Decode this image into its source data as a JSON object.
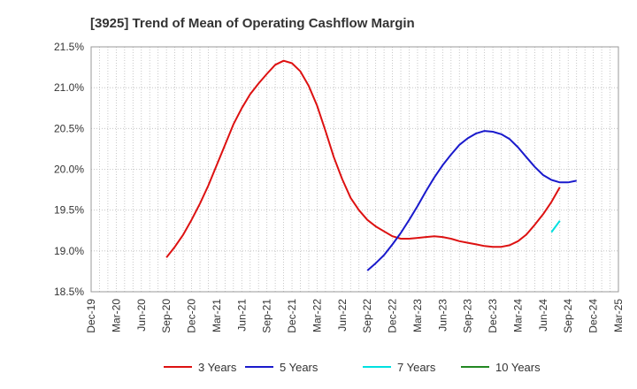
{
  "chart_data": {
    "type": "line",
    "title": "[3925]  Trend of Mean of Operating Cashflow Margin",
    "xlabel": "",
    "ylabel": "",
    "ylim": [
      18.5,
      21.5
    ],
    "y_ticks": [
      "18.5%",
      "19.0%",
      "19.5%",
      "20.0%",
      "20.5%",
      "21.0%",
      "21.5%"
    ],
    "y_tick_values": [
      18.5,
      19.0,
      19.5,
      20.0,
      20.5,
      21.0,
      21.5
    ],
    "x_ticks": [
      "Dec-19",
      "Mar-20",
      "Jun-20",
      "Sep-20",
      "Dec-20",
      "Mar-21",
      "Jun-21",
      "Sep-21",
      "Dec-21",
      "Mar-22",
      "Jun-22",
      "Sep-22",
      "Dec-22",
      "Mar-23",
      "Jun-23",
      "Sep-23",
      "Dec-23",
      "Mar-24",
      "Jun-24",
      "Sep-24",
      "Dec-24",
      "Mar-25"
    ],
    "x_range": [
      "Dec-19",
      "Mar-25"
    ],
    "grid": true,
    "legend_position": "bottom",
    "series": [
      {
        "name": "3 Years",
        "color": "#dd1111",
        "points": [
          [
            "Sep-20",
            18.92
          ],
          [
            "Oct-20",
            19.05
          ],
          [
            "Nov-20",
            19.2
          ],
          [
            "Dec-20",
            19.38
          ],
          [
            "Jan-21",
            19.58
          ],
          [
            "Feb-21",
            19.8
          ],
          [
            "Mar-21",
            20.05
          ],
          [
            "Apr-21",
            20.3
          ],
          [
            "May-21",
            20.55
          ],
          [
            "Jun-21",
            20.75
          ],
          [
            "Jul-21",
            20.92
          ],
          [
            "Aug-21",
            21.05
          ],
          [
            "Sep-21",
            21.17
          ],
          [
            "Oct-21",
            21.28
          ],
          [
            "Nov-21",
            21.33
          ],
          [
            "Dec-21",
            21.3
          ],
          [
            "Jan-22",
            21.2
          ],
          [
            "Feb-22",
            21.02
          ],
          [
            "Mar-22",
            20.78
          ],
          [
            "Apr-22",
            20.47
          ],
          [
            "May-22",
            20.15
          ],
          [
            "Jun-22",
            19.88
          ],
          [
            "Jul-22",
            19.65
          ],
          [
            "Aug-22",
            19.5
          ],
          [
            "Sep-22",
            19.38
          ],
          [
            "Oct-22",
            19.3
          ],
          [
            "Nov-22",
            19.24
          ],
          [
            "Dec-22",
            19.18
          ],
          [
            "Jan-23",
            19.15
          ],
          [
            "Feb-23",
            19.15
          ],
          [
            "Mar-23",
            19.16
          ],
          [
            "Apr-23",
            19.17
          ],
          [
            "May-23",
            19.18
          ],
          [
            "Jun-23",
            19.17
          ],
          [
            "Jul-23",
            19.15
          ],
          [
            "Aug-23",
            19.12
          ],
          [
            "Sep-23",
            19.1
          ],
          [
            "Oct-23",
            19.08
          ],
          [
            "Nov-23",
            19.06
          ],
          [
            "Dec-23",
            19.05
          ],
          [
            "Jan-24",
            19.05
          ],
          [
            "Feb-24",
            19.07
          ],
          [
            "Mar-24",
            19.12
          ],
          [
            "Apr-24",
            19.2
          ],
          [
            "May-24",
            19.32
          ],
          [
            "Jun-24",
            19.45
          ],
          [
            "Jul-24",
            19.6
          ],
          [
            "Aug-24",
            19.78
          ]
        ]
      },
      {
        "name": "5 Years",
        "color": "#1a1acc",
        "points": [
          [
            "Sep-22",
            18.76
          ],
          [
            "Oct-22",
            18.85
          ],
          [
            "Nov-22",
            18.95
          ],
          [
            "Dec-22",
            19.08
          ],
          [
            "Jan-23",
            19.22
          ],
          [
            "Feb-23",
            19.38
          ],
          [
            "Mar-23",
            19.55
          ],
          [
            "Apr-23",
            19.73
          ],
          [
            "May-23",
            19.9
          ],
          [
            "Jun-23",
            20.05
          ],
          [
            "Jul-23",
            20.18
          ],
          [
            "Aug-23",
            20.3
          ],
          [
            "Sep-23",
            20.38
          ],
          [
            "Oct-23",
            20.44
          ],
          [
            "Nov-23",
            20.47
          ],
          [
            "Dec-23",
            20.46
          ],
          [
            "Jan-24",
            20.43
          ],
          [
            "Feb-24",
            20.37
          ],
          [
            "Mar-24",
            20.27
          ],
          [
            "Apr-24",
            20.15
          ],
          [
            "May-24",
            20.03
          ],
          [
            "Jun-24",
            19.93
          ],
          [
            "Jul-24",
            19.87
          ],
          [
            "Aug-24",
            19.84
          ],
          [
            "Sep-24",
            19.84
          ],
          [
            "Oct-24",
            19.86
          ]
        ]
      },
      {
        "name": "7 Years",
        "color": "#00e0e0",
        "points": [
          [
            "Jul-24",
            19.23
          ],
          [
            "Aug-24",
            19.37
          ]
        ]
      },
      {
        "name": "10 Years",
        "color": "#228822",
        "points": []
      }
    ]
  }
}
